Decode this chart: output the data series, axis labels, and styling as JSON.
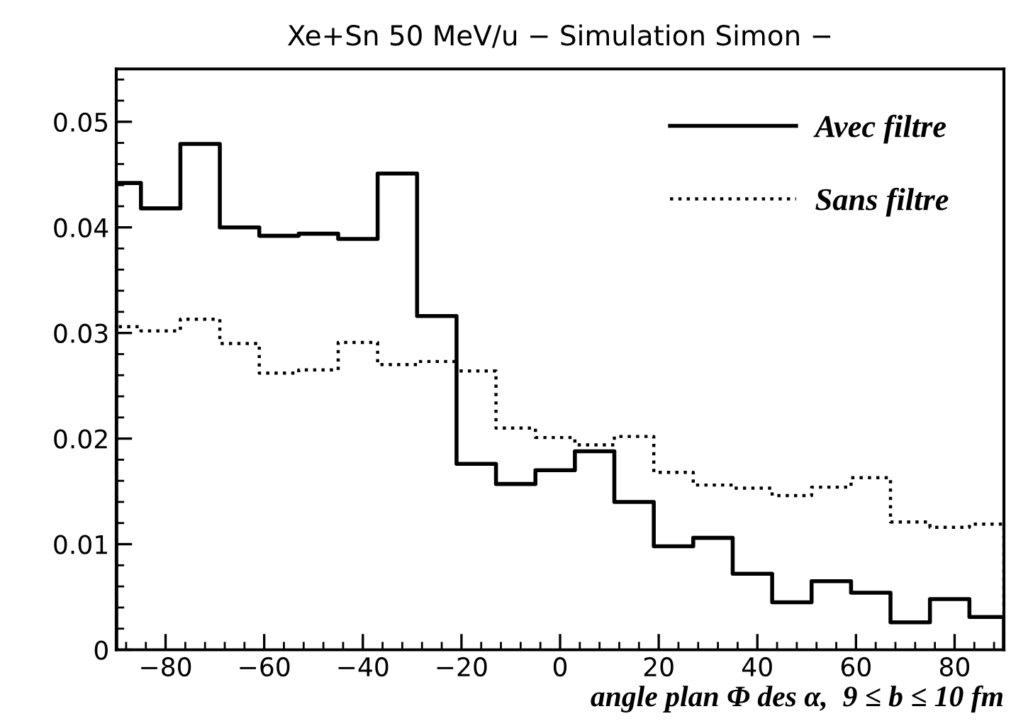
{
  "chart_data": {
    "type": "histogram",
    "title": "Xe+Sn 50 MeV/u − Simulation Simon −",
    "xlabel": "angle plan Φ des α,  9 ≤ b ≤ 10 fm",
    "bins": [
      -90,
      -85,
      -77,
      -69,
      -61,
      -53,
      -45,
      -37,
      -29,
      -21,
      -13,
      -5,
      3,
      11,
      19,
      27,
      35,
      43,
      51,
      59,
      67,
      75,
      83,
      90
    ],
    "series": [
      {
        "name": "Avec filtre",
        "color": "#000000",
        "line_style": "solid",
        "values": [
          0.0442,
          0.0418,
          0.0479,
          0.04,
          0.0392,
          0.0394,
          0.0389,
          0.0451,
          0.0316,
          0.0176,
          0.0157,
          0.017,
          0.0188,
          0.014,
          0.0098,
          0.0106,
          0.0072,
          0.0045,
          0.0065,
          0.0054,
          0.0026,
          0.0048,
          0.0031
        ]
      },
      {
        "name": "Sans filtre",
        "color": "#000000",
        "line_style": "dotted",
        "values": [
          0.0306,
          0.0302,
          0.0313,
          0.029,
          0.0262,
          0.0265,
          0.0291,
          0.027,
          0.0273,
          0.0264,
          0.021,
          0.0201,
          0.0194,
          0.0202,
          0.0168,
          0.0156,
          0.0153,
          0.0146,
          0.0154,
          0.0163,
          0.0121,
          0.0116,
          0.0119
        ]
      }
    ],
    "xlim": [
      -90,
      90
    ],
    "xticks": [
      {
        "value": -80,
        "label": "−80"
      },
      {
        "value": -60,
        "label": "−60"
      },
      {
        "value": -40,
        "label": "−40"
      },
      {
        "value": -20,
        "label": "−20"
      },
      0,
      20,
      40,
      60,
      80
    ],
    "ylim": [
      0,
      0.055
    ],
    "yticks": [
      0,
      0.01,
      0.02,
      0.03,
      0.04,
      0.05
    ],
    "legend": "top right",
    "grid": false
  }
}
